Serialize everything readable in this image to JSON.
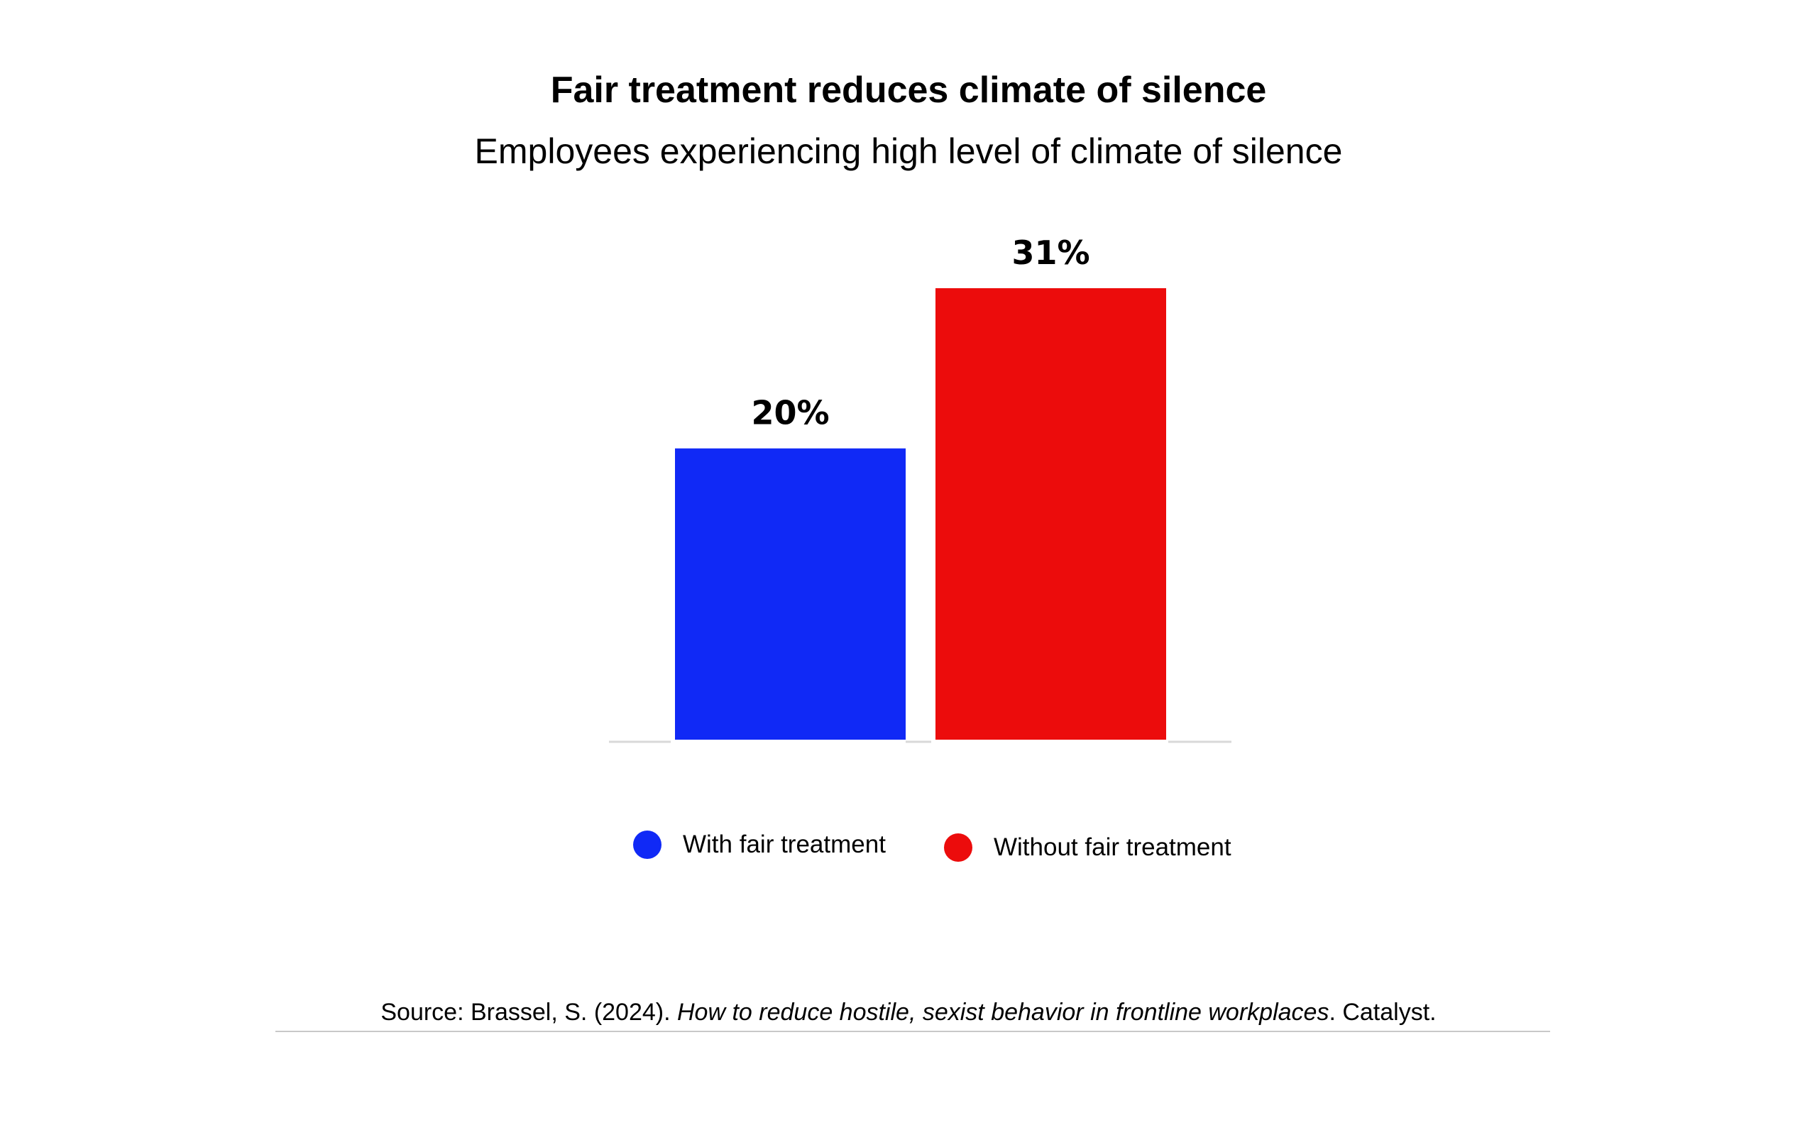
{
  "chart_data": {
    "type": "bar",
    "title": "Fair treatment reduces climate of silence",
    "subtitle": "Employees experiencing high level of climate of silence",
    "categories": [
      "With fair treatment",
      "Without fair treatment"
    ],
    "values": [
      20,
      31
    ],
    "data_labels": [
      "20%",
      "31%"
    ],
    "colors": [
      "#1029F6",
      "#EC0C0C"
    ],
    "ylim": [
      0,
      31
    ],
    "grid": false,
    "legend": {
      "placement": "bottom",
      "entries": [
        {
          "label": "With fair treatment",
          "color": "#1029F6"
        },
        {
          "label": "Without fair treatment",
          "color": "#EC0C0C"
        }
      ]
    }
  },
  "source": {
    "prefix": "Source: Brassel, S. (2024). ",
    "italic": "How to reduce hostile, sexist behavior in frontline workplaces",
    "suffix": ". Catalyst."
  }
}
